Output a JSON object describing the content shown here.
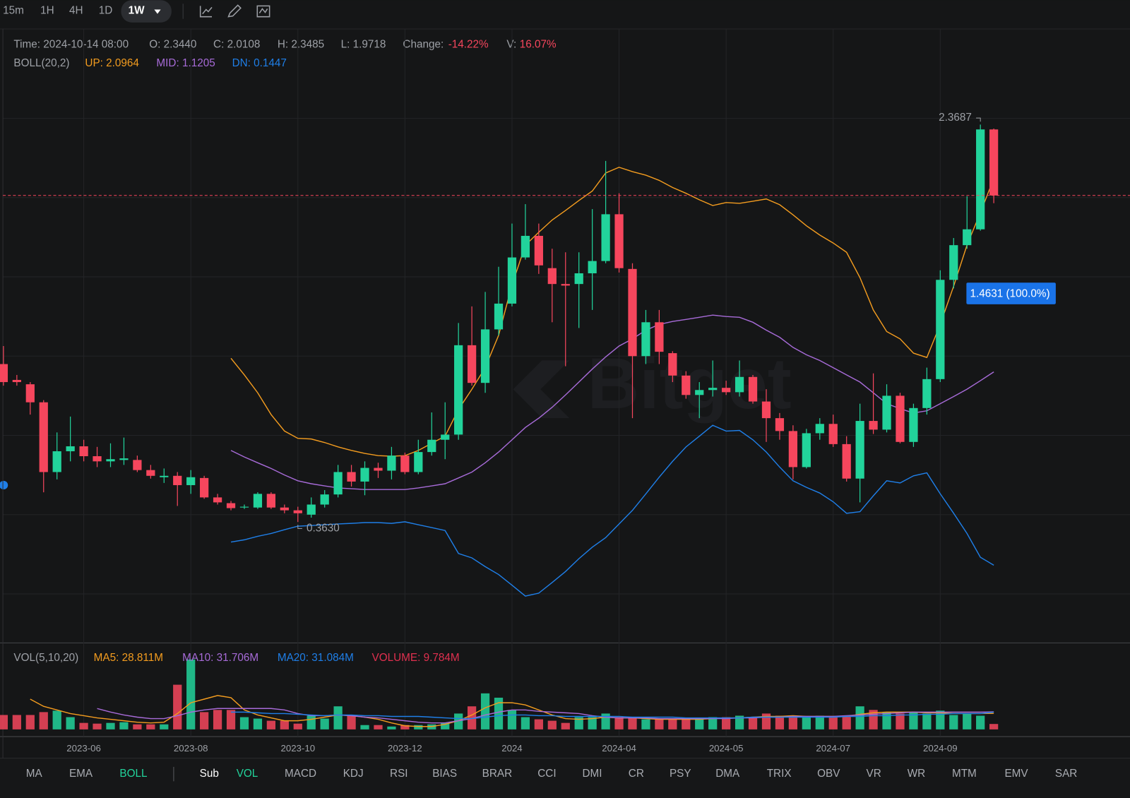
{
  "toolbar": {
    "intervals": [
      "15m",
      "1H",
      "4H",
      "1D",
      "1W"
    ],
    "active": 4
  },
  "chart_data": {
    "type": "candlestick",
    "header": {
      "time": "Time: 2024-10-14 08:00",
      "open": "O: 2.3440",
      "close": "C: 2.0108",
      "high": "H: 2.3485",
      "low": "L: 1.9718",
      "change_label": "Change:",
      "change": "-14.22%",
      "volume_label": "V:",
      "volume": "16.07%",
      "indicator": "BOLL(20,2)"
    },
    "categories": [
      null,
      null,
      null,
      null,
      null,
      null,
      "2023-06",
      null,
      null,
      null,
      null,
      null,
      null,
      null,
      "2023-08",
      null,
      null,
      null,
      null,
      null,
      null,
      null,
      "2023-10",
      null,
      null,
      null,
      null,
      null,
      null,
      null,
      "2023-12",
      null,
      null,
      null,
      null,
      null,
      null,
      null,
      "2024",
      null,
      null,
      null,
      null,
      null,
      null,
      null,
      "2024-04",
      null,
      null,
      null,
      null,
      null,
      null,
      null,
      "2024-05",
      null,
      null,
      null,
      null,
      null,
      null,
      null,
      "2024-07",
      null,
      null,
      null,
      null,
      null,
      null,
      null,
      "2024-09",
      null,
      null,
      null,
      null
    ],
    "open": [
      1.16,
      1.08,
      1.058,
      0.967,
      0.615,
      0.72,
      0.745,
      0.695,
      0.669,
      0.676,
      0.676,
      0.625,
      0.589,
      0.596,
      0.549,
      0.585,
      0.487,
      0.458,
      0.436,
      0.436,
      0.505,
      0.436,
      0.422,
      0.4,
      0.451,
      0.502,
      0.615,
      0.567,
      0.636,
      0.622,
      0.698,
      0.615,
      0.716,
      0.778,
      0.804,
      1.255,
      1.065,
      1.335,
      1.465,
      1.698,
      1.807,
      1.644,
      1.564,
      1.564,
      1.618,
      1.68,
      1.916,
      1.64,
      1.2,
      1.371,
      1.215,
      1.102,
      1.004,
      1.029,
      1.04,
      1.018,
      1.095,
      0.971,
      0.887,
      0.822,
      0.64,
      0.811,
      0.858,
      0.756,
      0.582,
      0.873,
      0.829,
      1.0,
      0.767,
      0.938,
      1.084,
      1.585,
      1.76,
      1.84,
      2.344
    ],
    "high": [
      1.251,
      1.105,
      1.069,
      0.978,
      0.815,
      0.895,
      0.778,
      0.742,
      0.76,
      0.789,
      0.698,
      0.651,
      0.633,
      0.615,
      0.625,
      0.596,
      0.505,
      0.469,
      0.451,
      0.513,
      0.513,
      0.451,
      0.44,
      0.487,
      0.524,
      0.651,
      0.651,
      0.669,
      0.662,
      0.742,
      0.713,
      0.778,
      0.916,
      0.967,
      1.367,
      1.451,
      1.524,
      1.651,
      1.869,
      1.967,
      1.869,
      1.742,
      1.724,
      1.724,
      1.942,
      2.185,
      2.022,
      1.669,
      1.433,
      1.433,
      1.225,
      1.124,
      1.069,
      1.178,
      1.076,
      1.178,
      1.105,
      1.033,
      0.913,
      0.851,
      0.833,
      0.887,
      0.905,
      0.796,
      0.96,
      1.113,
      1.058,
      1.015,
      0.96,
      1.142,
      1.633,
      1.796,
      2.007,
      2.3687,
      2.3485
    ],
    "low": [
      1.051,
      1.051,
      0.905,
      0.513,
      0.578,
      0.669,
      0.669,
      0.64,
      0.64,
      0.651,
      0.615,
      0.582,
      0.56,
      0.444,
      0.505,
      0.48,
      0.451,
      0.422,
      0.429,
      0.429,
      0.429,
      0.407,
      0.363,
      0.385,
      0.436,
      0.487,
      0.542,
      0.498,
      0.585,
      0.578,
      0.604,
      0.604,
      0.698,
      0.68,
      0.778,
      1.051,
      1.015,
      1.305,
      1.451,
      1.687,
      1.615,
      1.371,
      1.149,
      1.342,
      1.433,
      1.669,
      1.622,
      0.887,
      1.16,
      1.16,
      1.069,
      0.985,
      0.887,
      0.996,
      1.004,
      0.996,
      0.96,
      0.767,
      0.778,
      0.578,
      0.633,
      0.778,
      0.742,
      0.567,
      0.462,
      0.807,
      0.815,
      0.76,
      0.742,
      0.905,
      1.069,
      1.542,
      1.742,
      1.833,
      1.9718
    ],
    "close": [
      1.069,
      1.069,
      0.967,
      0.615,
      0.72,
      0.745,
      0.695,
      0.669,
      0.68,
      0.684,
      0.625,
      0.596,
      0.596,
      0.549,
      0.589,
      0.487,
      0.462,
      0.433,
      0.44,
      0.505,
      0.436,
      0.422,
      0.407,
      0.451,
      0.502,
      0.615,
      0.567,
      0.636,
      0.622,
      0.698,
      0.615,
      0.716,
      0.778,
      0.804,
      1.255,
      1.065,
      1.335,
      1.465,
      1.698,
      1.807,
      1.658,
      1.564,
      1.556,
      1.618,
      1.68,
      1.916,
      1.644,
      1.2,
      1.371,
      1.222,
      1.102,
      1.004,
      1.029,
      1.04,
      1.018,
      1.095,
      0.971,
      0.887,
      0.822,
      0.64,
      0.811,
      0.858,
      0.756,
      0.582,
      0.873,
      0.829,
      1.0,
      0.767,
      0.938,
      1.084,
      1.585,
      1.76,
      1.84,
      2.344,
      2.0108
    ],
    "up_color": "#22d39b",
    "down_color": "#f6465d",
    "ylim": [
      -0.24,
      2.851
    ],
    "yticks": [
      0,
      0.4,
      0.8,
      1.2,
      1.6,
      2.0,
      2.4
    ],
    "grid": true,
    "last_price_line": true,
    "overlays": [
      {
        "label": "UP: 2.0964",
        "color": "#f39c1f",
        "values": [
          null,
          null,
          null,
          null,
          null,
          null,
          null,
          null,
          null,
          null,
          null,
          null,
          null,
          null,
          null,
          null,
          null,
          1.189,
          1.105,
          1.015,
          0.905,
          0.822,
          0.785,
          0.782,
          0.764,
          0.742,
          0.724,
          0.709,
          0.698,
          0.695,
          0.698,
          0.724,
          0.76,
          0.796,
          0.931,
          1.033,
          1.142,
          1.305,
          1.56,
          1.76,
          1.825,
          1.887,
          1.935,
          1.985,
          2.033,
          2.124,
          2.153,
          2.131,
          2.113,
          2.087,
          2.051,
          2.022,
          1.989,
          1.96,
          1.975,
          1.971,
          1.982,
          1.993,
          1.964,
          1.913,
          1.858,
          1.811,
          1.771,
          1.724,
          1.596,
          1.433,
          1.324,
          1.287,
          1.215,
          1.193,
          1.36,
          1.553,
          1.76,
          1.924,
          2.0964
        ]
      },
      {
        "label": "MID: 1.1205",
        "color": "#a76bd8",
        "values": [
          null,
          null,
          null,
          null,
          null,
          null,
          null,
          null,
          null,
          null,
          null,
          null,
          null,
          null,
          null,
          null,
          null,
          0.724,
          0.691,
          0.662,
          0.633,
          0.6,
          0.571,
          0.556,
          0.545,
          0.535,
          0.531,
          0.527,
          0.527,
          0.527,
          0.527,
          0.535,
          0.545,
          0.556,
          0.585,
          0.615,
          0.662,
          0.716,
          0.778,
          0.84,
          0.887,
          0.942,
          1.004,
          1.069,
          1.135,
          1.196,
          1.251,
          1.287,
          1.331,
          1.36,
          1.375,
          1.385,
          1.396,
          1.407,
          1.4,
          1.396,
          1.371,
          1.331,
          1.295,
          1.244,
          1.207,
          1.178,
          1.142,
          1.105,
          1.069,
          1.015,
          0.96,
          0.935,
          0.913,
          0.924,
          0.96,
          0.996,
          1.033,
          1.076,
          1.1205
        ]
      },
      {
        "label": "DN: 0.1447",
        "color": "#1f7fe8",
        "values": [
          null,
          null,
          null,
          null,
          null,
          null,
          null,
          null,
          null,
          null,
          null,
          null,
          null,
          null,
          null,
          null,
          null,
          0.262,
          0.273,
          0.291,
          0.305,
          0.324,
          0.342,
          0.345,
          0.349,
          0.353,
          0.356,
          0.36,
          0.36,
          0.356,
          0.364,
          0.349,
          0.335,
          0.32,
          0.204,
          0.182,
          0.138,
          0.098,
          0.044,
          -0.011,
          0.004,
          0.058,
          0.113,
          0.178,
          0.236,
          0.284,
          0.353,
          0.422,
          0.505,
          0.589,
          0.669,
          0.742,
          0.796,
          0.851,
          0.822,
          0.825,
          0.778,
          0.716,
          0.64,
          0.571,
          0.538,
          0.509,
          0.465,
          0.407,
          0.415,
          0.495,
          0.571,
          0.56,
          0.596,
          0.611,
          0.505,
          0.407,
          0.305,
          0.185,
          0.1447
        ]
      }
    ],
    "annotations": {
      "max": "2.3687",
      "min": "0.3630"
    },
    "price_tag": "1.4631 (100.0%)",
    "watermark": "Bitget",
    "volume": {
      "title": "VOL(5,10,20)",
      "ylim": [
        0,
        152.1
      ],
      "values": [
        26,
        26,
        26,
        31.2,
        33.8,
        22.1,
        11.7,
        10.4,
        11.7,
        13,
        9.1,
        9.1,
        9.1,
        80.6,
        126.1,
        31.2,
        35.1,
        35.1,
        22.1,
        19.5,
        15.6,
        15.6,
        10.4,
        24.7,
        19.5,
        41.6,
        24.7,
        7.8,
        7.8,
        5.2,
        7.8,
        7.8,
        9.1,
        11.7,
        28.6,
        41.6,
        65,
        57.2,
        35.1,
        22.1,
        18.2,
        15.6,
        11.7,
        22.1,
        22.1,
        28.6,
        22.1,
        22.1,
        18.2,
        18.2,
        18.2,
        18.2,
        18.2,
        22.1,
        22.1,
        24.7,
        22.1,
        28.6,
        24.7,
        24.7,
        22.1,
        24.7,
        22.1,
        24.7,
        41.6,
        35.1,
        31.2,
        28.6,
        31.2,
        28.6,
        33.8,
        26,
        28.6,
        24.7,
        9.784
      ],
      "volume_label": "VOLUME: 9.784M",
      "volume_color": "#e0304f",
      "series": [
        {
          "label": "MA5: 28.811M",
          "color": "#f39c1f",
          "values": [
            null,
            null,
            54.6,
            41.6,
            35.1,
            28.6,
            24.7,
            20.8,
            18.2,
            15.6,
            13,
            11.7,
            13,
            28.6,
            48.1,
            54.6,
            61.1,
            57.2,
            35.1,
            26,
            20.8,
            15.6,
            15.6,
            18.2,
            22.1,
            26,
            24.7,
            22.1,
            18.2,
            11.7,
            6.5,
            5.2,
            5.2,
            9.1,
            15.6,
            26,
            39,
            48.1,
            48.1,
            44.2,
            35.1,
            26,
            19.5,
            18.2,
            19.5,
            22.1,
            20.8,
            20.8,
            19.5,
            18.2,
            18.2,
            18.2,
            18.2,
            19.5,
            20.8,
            20.8,
            22.1,
            23.4,
            23.4,
            24.7,
            23.4,
            23.4,
            23.4,
            23.4,
            27.3,
            29.9,
            31.2,
            31.2,
            31.2,
            29.9,
            29.9,
            28.6,
            28.6,
            28.6,
            28.811
          ]
        },
        {
          "label": "MA10: 31.706M",
          "color": "#a76bd8",
          "values": [
            null,
            null,
            null,
            null,
            null,
            null,
            null,
            37.7,
            31.2,
            26,
            22.1,
            19.5,
            19.5,
            24.7,
            31.2,
            35.1,
            37.7,
            37.7,
            37.7,
            37.7,
            37.7,
            35.1,
            28.6,
            24.7,
            24.7,
            26,
            24.7,
            22.1,
            20.8,
            18.2,
            15.6,
            13,
            11.7,
            11.7,
            15.6,
            19.5,
            26,
            31.2,
            35.1,
            35.1,
            32.5,
            31.2,
            29.9,
            28.6,
            24.7,
            22.1,
            20.8,
            20.8,
            20.8,
            19.5,
            19.5,
            19.5,
            19.5,
            19.5,
            19.5,
            20.8,
            20.8,
            22.1,
            22.1,
            23.4,
            23.4,
            23.4,
            23.4,
            24.7,
            26,
            27.3,
            28.6,
            29.9,
            31.2,
            31.2,
            31.2,
            31.2,
            31.2,
            31.2,
            31.706
          ]
        },
        {
          "label": "MA20: 31.084M",
          "color": "#1f7fe8",
          "values": [
            null,
            null,
            null,
            null,
            null,
            null,
            null,
            null,
            null,
            null,
            null,
            null,
            null,
            null,
            null,
            null,
            null,
            31.2,
            31.2,
            29.9,
            28.6,
            28.6,
            27.3,
            26,
            24.7,
            26,
            26,
            24.7,
            24.7,
            23.4,
            23.4,
            23.4,
            22.1,
            20.8,
            19.5,
            19.5,
            22.1,
            24.7,
            26,
            26,
            24.7,
            24.7,
            23.4,
            23.4,
            23.4,
            23.4,
            23.4,
            22.1,
            22.1,
            22.1,
            22.1,
            20.8,
            20.8,
            20.8,
            20.8,
            20.8,
            22.1,
            22.1,
            22.1,
            22.1,
            22.1,
            22.1,
            22.1,
            23.4,
            23.4,
            24.7,
            24.7,
            26,
            26,
            27.3,
            27.3,
            28.6,
            28.6,
            28.6,
            31.084
          ]
        }
      ]
    }
  },
  "indicator_bar": {
    "main": [
      "MA",
      "EMA",
      "BOLL"
    ],
    "active_main": 2,
    "sub_label": "Sub",
    "sub": [
      "VOL",
      "MACD",
      "KDJ",
      "RSI",
      "BIAS",
      "BRAR",
      "CCI",
      "DMI",
      "CR",
      "PSY",
      "DMA",
      "TRIX",
      "OBV",
      "VR",
      "WR",
      "MTM",
      "EMV",
      "SAR"
    ],
    "active_sub": 0,
    "active_color": "#22d39b"
  }
}
